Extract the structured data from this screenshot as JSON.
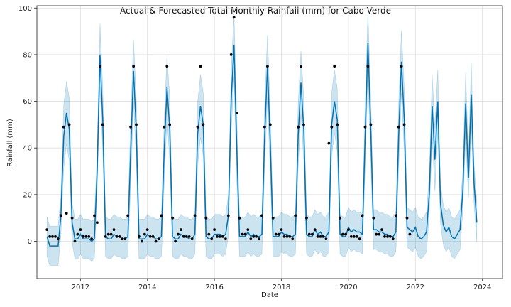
{
  "chart_data": {
    "type": "line",
    "title": "Actual & Forecasted Total Monthly Rainfall (mm) for Cabo Verde",
    "xlabel": "Date",
    "ylabel": "Rainfall (mm)",
    "xlim": [
      2010.7,
      2024.6
    ],
    "ylim": [
      -16,
      101
    ],
    "xticks": [
      2012,
      2014,
      2016,
      2018,
      2020,
      2022,
      2024
    ],
    "yticks": [
      0,
      20,
      40,
      60,
      80,
      100
    ],
    "grid": true,
    "legend": "none",
    "colors": {
      "forecast": "#0072B2",
      "interval": "#0072B2",
      "actual": "#000000"
    },
    "actual_start_year": 2011,
    "actual": [
      [
        5,
        2,
        2,
        2,
        1,
        11,
        49,
        12,
        50,
        10,
        0,
        3
      ],
      [
        5,
        2,
        2,
        2,
        1,
        11,
        8,
        75,
        50,
        2,
        3,
        3
      ],
      [
        5,
        2,
        2,
        1,
        1,
        11,
        49,
        75,
        50,
        2,
        0,
        3
      ],
      [
        5,
        2,
        2,
        0,
        1,
        11,
        49,
        75,
        50,
        10,
        0,
        3
      ],
      [
        5,
        2,
        2,
        2,
        1,
        11,
        49,
        75,
        50,
        10,
        3,
        1
      ],
      [
        5,
        2,
        2,
        2,
        1,
        11,
        80,
        96,
        55,
        10,
        3,
        3
      ],
      [
        5,
        1,
        2,
        2,
        1,
        11,
        49,
        75,
        50,
        10,
        3,
        3
      ],
      [
        5,
        2,
        2,
        2,
        1,
        11,
        49,
        75,
        50,
        10,
        3,
        3
      ],
      [
        5,
        2,
        2,
        2,
        1,
        42,
        49,
        75,
        50,
        10,
        3,
        3
      ],
      [
        5,
        2,
        2,
        2,
        1,
        11,
        49,
        75,
        50,
        10,
        3,
        3
      ],
      [
        5,
        2,
        2,
        2,
        1,
        11,
        49,
        75,
        50,
        10,
        3
      ]
    ],
    "forecast_start_year": 2011,
    "forecast": [
      [
        2,
        -2,
        -2,
        -2,
        -2,
        11,
        45,
        55,
        48,
        8,
        1,
        1
      ],
      [
        3,
        1,
        1,
        1,
        0,
        1,
        30,
        80,
        52,
        2,
        1,
        1
      ],
      [
        3,
        2,
        2,
        1,
        1,
        2,
        38,
        73,
        48,
        1,
        1,
        1
      ],
      [
        3,
        2,
        2,
        1,
        1,
        2,
        38,
        66,
        48,
        2,
        1,
        1
      ],
      [
        3,
        2,
        2,
        1,
        1,
        3,
        46,
        58,
        50,
        2,
        1,
        1
      ],
      [
        3,
        3,
        3,
        2,
        3,
        11,
        60,
        84,
        40,
        2,
        2,
        2
      ],
      [
        4,
        2,
        3,
        2,
        2,
        3,
        45,
        75,
        42,
        2,
        2,
        2
      ],
      [
        4,
        3,
        3,
        2,
        2,
        3,
        45,
        68,
        48,
        3,
        2,
        2
      ],
      [
        5,
        3,
        4,
        2,
        2,
        4,
        50,
        60,
        52,
        3,
        2,
        2
      ],
      [
        6,
        4,
        5,
        4,
        4,
        3,
        45,
        85,
        48,
        5,
        5,
        4
      ],
      [
        4,
        3,
        3,
        2,
        2,
        4,
        45,
        77,
        52,
        6,
        5,
        4
      ],
      [
        6,
        2,
        1,
        2,
        4,
        21,
        58,
        35,
        60,
        16,
        7,
        4
      ],
      [
        6,
        2,
        1,
        3,
        5,
        22,
        59,
        27,
        63,
        25,
        8
      ]
    ],
    "interval_halfwidth": 8.5,
    "peak_halfwidth_extra": 5
  }
}
